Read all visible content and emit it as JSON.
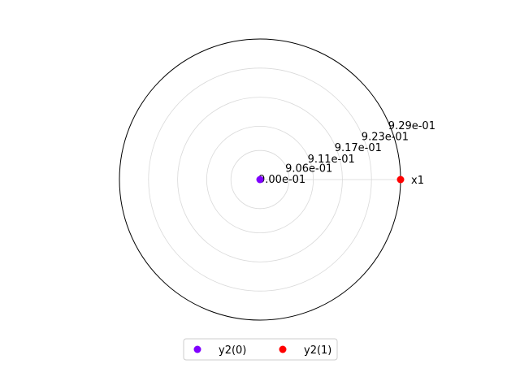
{
  "chart_data": {
    "type": "scatter",
    "projection": "polar",
    "title": "",
    "angular_ticks": [
      "x1"
    ],
    "radial_ticks": [
      0.9,
      0.906,
      0.911,
      0.917,
      0.923,
      0.929
    ],
    "radial_tick_labels": [
      "9.00e-01",
      "9.06e-01",
      "9.11e-01",
      "9.17e-01",
      "9.23e-01",
      "9.29e-01"
    ],
    "rlim": [
      0.9,
      0.929
    ],
    "grid": true,
    "series": [
      {
        "name": "y2(0)",
        "color": "#7f00ff",
        "points": [
          {
            "theta_deg": 0,
            "r": 0.9
          }
        ]
      },
      {
        "name": "y2(1)",
        "color": "#ff0000",
        "points": [
          {
            "theta_deg": 0,
            "r": 0.929
          }
        ]
      }
    ],
    "legend": {
      "placement": "bottom-center",
      "columns": 2
    }
  }
}
